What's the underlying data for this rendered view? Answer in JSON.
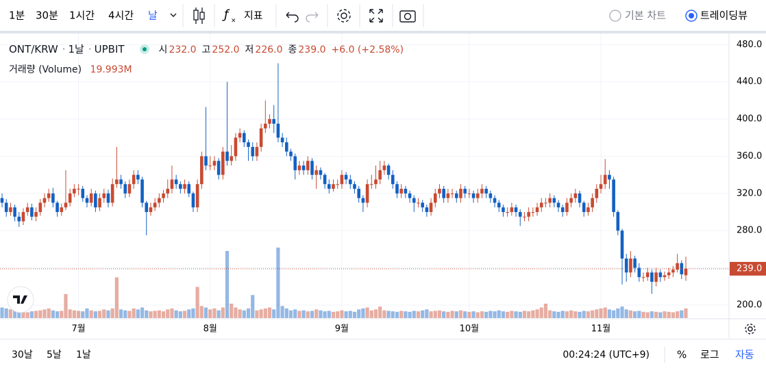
{
  "toolbar": {
    "intervals": [
      "1분",
      "30분",
      "1시간",
      "4시간",
      "날"
    ],
    "indicators": "지표",
    "chart_styles": [
      "기본 차트",
      "트레이딩뷰"
    ]
  },
  "chart_data": {
    "type": "candlestick",
    "symbol": "ONT/KRW",
    "interval": "1날",
    "exchange": "UPBIT",
    "ohlc_names": [
      "시",
      "고",
      "저",
      "종"
    ],
    "ohlc_labels": [
      "232.0",
      "252.0",
      "226.0",
      "239.0"
    ],
    "change": "+6.0 (+2.58%)",
    "up_color": "#c84a31",
    "down_color": "#1261c4",
    "categories": [
      null,
      null,
      null,
      null,
      null,
      null,
      null,
      null,
      null,
      null,
      null,
      null,
      null,
      null,
      null,
      null,
      null,
      null,
      "7월",
      null,
      null,
      null,
      null,
      null,
      null,
      null,
      null,
      null,
      null,
      null,
      null,
      null,
      null,
      null,
      null,
      null,
      null,
      null,
      null,
      null,
      null,
      null,
      null,
      null,
      null,
      null,
      null,
      null,
      null,
      "8월",
      null,
      null,
      null,
      null,
      null,
      null,
      null,
      null,
      null,
      null,
      null,
      null,
      null,
      null,
      null,
      null,
      null,
      null,
      null,
      null,
      null,
      null,
      null,
      null,
      null,
      null,
      null,
      null,
      null,
      null,
      "9월",
      null,
      null,
      null,
      null,
      null,
      null,
      null,
      null,
      null,
      null,
      null,
      null,
      null,
      null,
      null,
      null,
      null,
      null,
      null,
      null,
      null,
      null,
      null,
      null,
      null,
      null,
      null,
      null,
      null,
      "10월",
      null,
      null,
      null,
      null,
      null,
      null,
      null,
      null,
      null,
      null,
      null,
      null,
      null,
      null,
      null,
      null,
      null,
      null,
      null,
      null,
      null,
      null,
      null,
      null,
      null,
      null,
      null,
      null,
      null,
      null,
      "11월",
      null,
      null,
      null,
      null,
      null,
      null,
      null,
      null,
      null,
      null,
      null,
      null,
      null,
      null,
      null,
      null,
      null,
      null,
      null,
      null
    ],
    "open": [
      315,
      310,
      300,
      305,
      295,
      290,
      300,
      305,
      295,
      300,
      310,
      315,
      320,
      310,
      300,
      305,
      310,
      320,
      325,
      325,
      315,
      310,
      320,
      305,
      315,
      320,
      310,
      330,
      335,
      330,
      320,
      330,
      340,
      335,
      310,
      300,
      305,
      310,
      315,
      320,
      325,
      335,
      330,
      325,
      330,
      320,
      305,
      330,
      360,
      350,
      350,
      355,
      340,
      365,
      355,
      360,
      380,
      385,
      375,
      370,
      360,
      370,
      390,
      395,
      400,
      395,
      380,
      375,
      365,
      360,
      345,
      350,
      345,
      355,
      340,
      345,
      340,
      330,
      325,
      330,
      330,
      340,
      335,
      330,
      325,
      315,
      310,
      330,
      330,
      335,
      345,
      350,
      340,
      330,
      320,
      325,
      320,
      315,
      310,
      310,
      305,
      300,
      310,
      320,
      325,
      315,
      320,
      320,
      315,
      325,
      320,
      320,
      315,
      320,
      325,
      320,
      315,
      310,
      305,
      300,
      300,
      305,
      300,
      295,
      295,
      300,
      300,
      305,
      310,
      310,
      315,
      310,
      305,
      300,
      310,
      315,
      320,
      310,
      300,
      305,
      315,
      325,
      330,
      340,
      335,
      300,
      280,
      250,
      235,
      250,
      240,
      230,
      230,
      235,
      225,
      235,
      230,
      232,
      235,
      238,
      245,
      232
    ],
    "high": [
      320,
      314,
      310,
      308,
      300,
      304,
      310,
      309,
      305,
      314,
      320,
      325,
      326,
      312,
      309,
      345,
      325,
      330,
      330,
      328,
      318,
      325,
      323,
      320,
      325,
      324,
      336,
      370,
      340,
      333,
      335,
      345,
      345,
      338,
      312,
      310,
      315,
      320,
      324,
      335,
      350,
      340,
      333,
      335,
      333,
      322,
      335,
      365,
      413,
      360,
      360,
      358,
      370,
      440,
      372,
      385,
      390,
      388,
      378,
      375,
      375,
      395,
      420,
      405,
      415,
      460,
      385,
      380,
      368,
      363,
      355,
      355,
      360,
      358,
      350,
      348,
      342,
      335,
      335,
      335,
      345,
      343,
      340,
      333,
      328,
      318,
      335,
      340,
      350,
      355,
      355,
      352,
      345,
      333,
      330,
      328,
      323,
      318,
      315,
      313,
      308,
      315,
      325,
      330,
      328,
      325,
      325,
      323,
      330,
      328,
      325,
      323,
      325,
      330,
      328,
      323,
      318,
      313,
      308,
      305,
      310,
      308,
      303,
      300,
      305,
      305,
      310,
      315,
      315,
      320,
      318,
      313,
      308,
      315,
      320,
      325,
      323,
      312,
      310,
      320,
      330,
      340,
      357,
      345,
      338,
      302,
      282,
      255,
      258,
      253,
      245,
      235,
      240,
      238,
      240,
      238,
      236,
      240,
      242,
      255,
      248,
      252
    ],
    "low": [
      305,
      295,
      296,
      290,
      284,
      286,
      296,
      291,
      290,
      296,
      305,
      311,
      305,
      295,
      296,
      302,
      306,
      316,
      318,
      311,
      305,
      306,
      300,
      301,
      310,
      305,
      306,
      326,
      325,
      315,
      316,
      325,
      330,
      305,
      275,
      296,
      301,
      305,
      310,
      315,
      320,
      325,
      320,
      320,
      316,
      300,
      300,
      325,
      345,
      345,
      345,
      335,
      335,
      350,
      350,
      355,
      375,
      370,
      355,
      355,
      355,
      365,
      385,
      390,
      385,
      375,
      370,
      360,
      355,
      335,
      340,
      340,
      340,
      335,
      325,
      335,
      325,
      320,
      322,
      325,
      325,
      330,
      325,
      320,
      310,
      300,
      305,
      325,
      325,
      330,
      340,
      335,
      325,
      315,
      315,
      315,
      310,
      300,
      305,
      300,
      295,
      296,
      305,
      315,
      310,
      310,
      315,
      310,
      310,
      315,
      315,
      310,
      310,
      315,
      315,
      310,
      305,
      300,
      295,
      295,
      296,
      295,
      285,
      290,
      290,
      295,
      296,
      300,
      305,
      305,
      305,
      300,
      295,
      296,
      305,
      310,
      305,
      295,
      296,
      300,
      310,
      320,
      325,
      325,
      295,
      275,
      222,
      225,
      230,
      235,
      225,
      225,
      226,
      212,
      220,
      225,
      226,
      228,
      230,
      235,
      228,
      226
    ],
    "close": [
      310,
      300,
      305,
      295,
      290,
      300,
      305,
      295,
      300,
      310,
      315,
      320,
      310,
      300,
      305,
      310,
      320,
      325,
      325,
      315,
      310,
      320,
      305,
      315,
      320,
      310,
      330,
      335,
      330,
      320,
      330,
      340,
      335,
      310,
      300,
      305,
      310,
      315,
      320,
      325,
      335,
      330,
      325,
      330,
      320,
      305,
      330,
      360,
      350,
      350,
      355,
      340,
      365,
      355,
      360,
      380,
      385,
      375,
      370,
      360,
      370,
      390,
      395,
      400,
      395,
      380,
      375,
      365,
      360,
      345,
      350,
      345,
      355,
      340,
      345,
      340,
      330,
      325,
      330,
      330,
      340,
      335,
      330,
      325,
      315,
      310,
      330,
      330,
      335,
      345,
      350,
      340,
      330,
      320,
      325,
      320,
      315,
      310,
      310,
      305,
      300,
      310,
      320,
      325,
      315,
      320,
      320,
      315,
      325,
      320,
      320,
      315,
      320,
      325,
      320,
      315,
      310,
      305,
      300,
      300,
      305,
      300,
      295,
      295,
      300,
      300,
      305,
      310,
      310,
      315,
      310,
      305,
      300,
      310,
      315,
      320,
      310,
      300,
      305,
      315,
      325,
      330,
      340,
      335,
      300,
      280,
      250,
      235,
      250,
      240,
      230,
      230,
      235,
      225,
      235,
      230,
      232,
      235,
      238,
      245,
      233,
      239
    ],
    "volume": {
      "name": "거래량 (Volume)",
      "last_label": "19.993M",
      "values": [
        22,
        20,
        18,
        16,
        15,
        14,
        12,
        14,
        15,
        16,
        18,
        20,
        16,
        14,
        15,
        50,
        18,
        16,
        15,
        14,
        20,
        16,
        14,
        15,
        18,
        16,
        20,
        85,
        18,
        16,
        15,
        20,
        18,
        22,
        16,
        14,
        15,
        16,
        14,
        18,
        20,
        16,
        14,
        15,
        18,
        20,
        65,
        25,
        22,
        18,
        20,
        16,
        22,
        140,
        30,
        22,
        18,
        16,
        20,
        48,
        16,
        18,
        20,
        22,
        18,
        147,
        25,
        20,
        16,
        18,
        15,
        16,
        14,
        15,
        18,
        16,
        14,
        15,
        13,
        14,
        16,
        14,
        15,
        13,
        18,
        20,
        22,
        16,
        18,
        24,
        16,
        15,
        14,
        13,
        15,
        14,
        13,
        15,
        14,
        16,
        18,
        14,
        15,
        16,
        14,
        13,
        15,
        14,
        16,
        14,
        13,
        14,
        12,
        14,
        13,
        15,
        14,
        16,
        14,
        13,
        15,
        14,
        13,
        15,
        14,
        16,
        18,
        22,
        30,
        16,
        14,
        13,
        15,
        14,
        16,
        14,
        13,
        15,
        14,
        16,
        18,
        20,
        22,
        18,
        16,
        20,
        24,
        18,
        16,
        14,
        15,
        13,
        12,
        14,
        13,
        12,
        14,
        13,
        12,
        14,
        16,
        19.993
      ]
    },
    "ylim": [
      186,
      492
    ],
    "yticks": [
      {
        "value": 200,
        "label": "200.0"
      },
      {
        "value": 240,
        "label": "240.0"
      },
      {
        "value": 280,
        "label": "280.0"
      },
      {
        "value": 320,
        "label": "320.0"
      },
      {
        "value": 360,
        "label": "360.0"
      },
      {
        "value": 400,
        "label": "400.0"
      },
      {
        "value": 440,
        "label": "440.0"
      },
      {
        "value": 480,
        "label": "480.0"
      }
    ],
    "grid": true
  },
  "footer": {
    "ranges": [
      "30날",
      "5날",
      "1날"
    ],
    "clock": "00:24:24 (UTC+9)",
    "scale_options": [
      "%",
      "로그",
      "자동"
    ]
  }
}
